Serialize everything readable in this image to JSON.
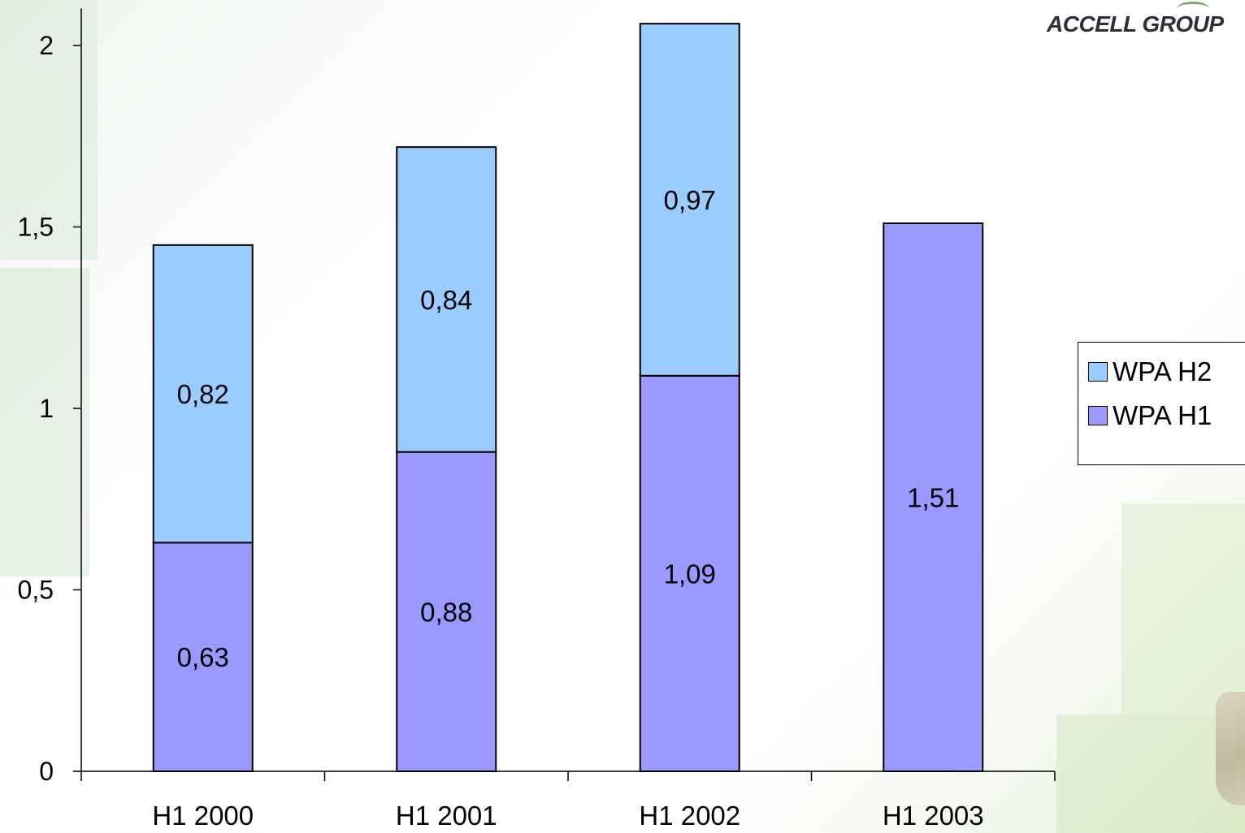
{
  "logo": {
    "text": "ACCELL GROUP"
  },
  "chart_data": {
    "type": "bar",
    "stacked": true,
    "categories": [
      "H1 2000",
      "H1 2001",
      "H1 2002",
      "H1 2003"
    ],
    "series": [
      {
        "name": "WPA H1",
        "values": [
          0.63,
          0.88,
          1.09,
          1.51
        ],
        "labels": [
          "0,63",
          "0,88",
          "1,09",
          "1,51"
        ],
        "color": "#9999ff"
      },
      {
        "name": "WPA H2",
        "values": [
          0.82,
          0.84,
          0.97,
          null
        ],
        "labels": [
          "0,82",
          "0,84",
          "0,97",
          ""
        ],
        "color": "#99ccff"
      }
    ],
    "yticks": [
      {
        "value": 0,
        "label": "0"
      },
      {
        "value": 0.5,
        "label": "0,5"
      },
      {
        "value": 1,
        "label": "1"
      },
      {
        "value": 1.5,
        "label": "1,5"
      },
      {
        "value": 2,
        "label": "2"
      }
    ],
    "ylim": [
      0,
      2.1
    ],
    "grid": false,
    "legend": {
      "position": "right",
      "entries": [
        {
          "label": "WPA H2",
          "color": "#99ccff"
        },
        {
          "label": "WPA H1",
          "color": "#9999ff"
        }
      ]
    }
  }
}
